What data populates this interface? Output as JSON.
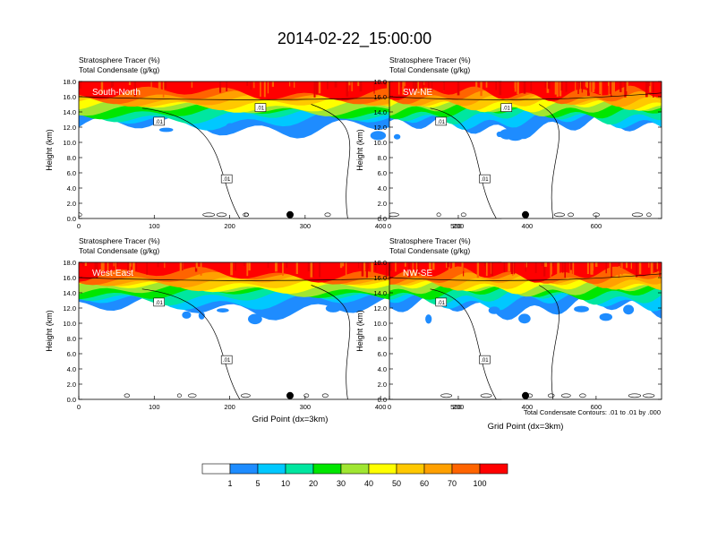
{
  "title": "2014-02-22_15:00:00",
  "panels": [
    {
      "label": "South-North",
      "header_line1": "Stratosphere Tracer   (%)",
      "header_line2": "Total Condensate   (g/kg)",
      "ylabel": "Height (km)",
      "xlabel": "",
      "xticks": [
        "0",
        "100",
        "200",
        "300",
        "400",
        "500"
      ],
      "xlim": [
        0,
        560
      ],
      "yticks": [
        "0.0",
        "2.0",
        "4.0",
        "6.0",
        "8.0",
        "10.0",
        "12.0",
        "14.0",
        "16.0",
        "18.0"
      ],
      "ylim": [
        0,
        18
      ],
      "contour_labels": [
        ".01",
        ".01",
        ".01"
      ],
      "marker_x": 280
    },
    {
      "label": "SW-NE",
      "header_line1": "Stratosphere Tracer   (%)",
      "header_line2": "Total Condensate   (g/kg)",
      "ylabel": "Height (km)",
      "xlabel": "",
      "xticks": [
        "0",
        "200",
        "400",
        "600"
      ],
      "xlim": [
        0,
        790
      ],
      "yticks": [
        "0.0",
        "2.0",
        "4.0",
        "6.0",
        "8.0",
        "10.0",
        "12.0",
        "14.0",
        "16.0",
        "18.0"
      ],
      "ylim": [
        0,
        18
      ],
      "contour_labels": [
        ".01",
        ".01",
        ".01"
      ],
      "marker_x": 395
    },
    {
      "label": "West-East",
      "header_line1": "Stratosphere Tracer   (%)",
      "header_line2": "Total Condensate   (g/kg)",
      "ylabel": "Height (km)",
      "xlabel": "Grid Point (dx=3km)",
      "xticks": [
        "0",
        "100",
        "200",
        "300",
        "400",
        "500"
      ],
      "xlim": [
        0,
        560
      ],
      "yticks": [
        "0.0",
        "2.0",
        "4.0",
        "6.0",
        "8.0",
        "10.0",
        "12.0",
        "14.0",
        "16.0",
        "18.0"
      ],
      "ylim": [
        0,
        18
      ],
      "contour_labels": [
        ".01",
        ".01"
      ],
      "marker_x": 280
    },
    {
      "label": "NW-SE",
      "header_line1": "Stratosphere Tracer   (%)",
      "header_line2": "Total Condensate   (g/kg)",
      "ylabel": "Height (km)",
      "xlabel": "Grid Point (dx=3km)",
      "xticks": [
        "0",
        "200",
        "400",
        "600"
      ],
      "xlim": [
        0,
        790
      ],
      "yticks": [
        "0.0",
        "2.0",
        "4.0",
        "6.0",
        "8.0",
        "10.0",
        "12.0",
        "14.0",
        "16.0",
        "18.0"
      ],
      "ylim": [
        0,
        18
      ],
      "contour_labels": [
        ".01",
        ".01"
      ],
      "marker_x": 395
    }
  ],
  "contour_note": "Total Condensate Contours: .01 to .01 by .000",
  "colorbar": {
    "labels": [
      "1",
      "5",
      "10",
      "20",
      "30",
      "40",
      "50",
      "60",
      "70",
      "100"
    ],
    "colors": [
      "#ffffff",
      "#1e8cff",
      "#00c8ff",
      "#00e6a0",
      "#00e600",
      "#a0e632",
      "#ffff00",
      "#ffc800",
      "#ffa000",
      "#ff6400",
      "#ff0000"
    ]
  },
  "chart_data": {
    "type": "heatmap",
    "title": "2014-02-22_15:00:00",
    "xlabel": "Grid Point (dx=3km)",
    "ylabel": "Height (km)",
    "ylim": [
      0,
      18
    ],
    "colorbar_levels": [
      1,
      5,
      10,
      20,
      30,
      40,
      50,
      60,
      70,
      100
    ],
    "panels": [
      {
        "name": "South-North",
        "xlim": [
          0,
          560
        ],
        "tracer_band_km": [
          12,
          18
        ]
      },
      {
        "name": "SW-NE",
        "xlim": [
          0,
          790
        ],
        "tracer_band_km": [
          12,
          18
        ]
      },
      {
        "name": "West-East",
        "xlim": [
          0,
          560
        ],
        "tracer_band_km": [
          12,
          18
        ]
      },
      {
        "name": "NW-SE",
        "xlim": [
          0,
          790
        ],
        "tracer_band_km": [
          12,
          18
        ]
      }
    ]
  }
}
